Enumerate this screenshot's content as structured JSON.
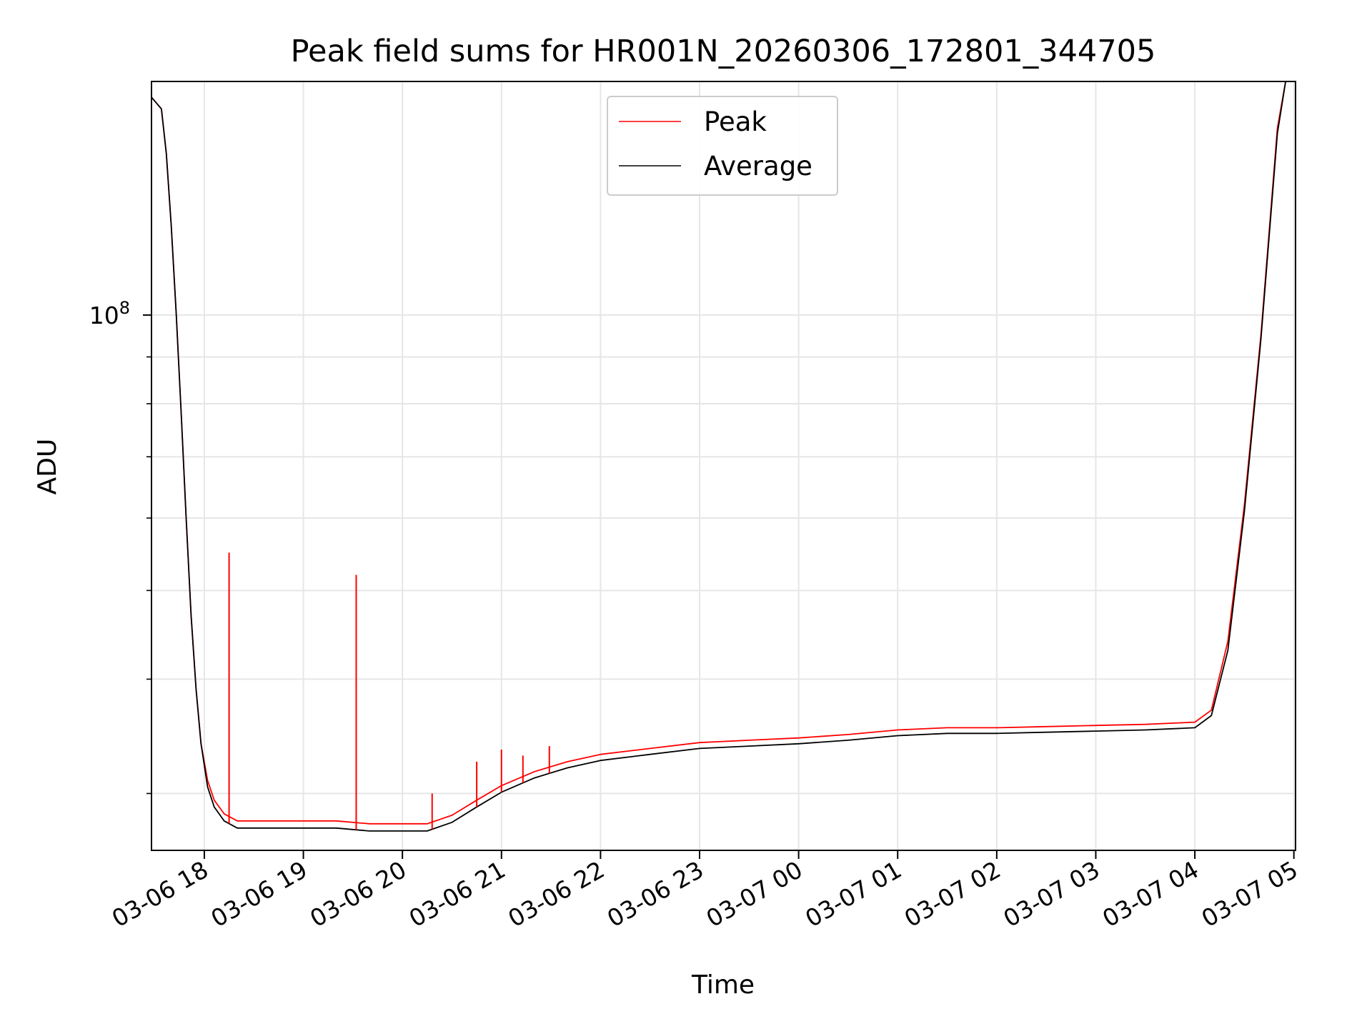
{
  "chart_data": {
    "type": "line",
    "title": "Peak field sums for HR001N_20260306_172801_344705",
    "xlabel": "Time",
    "ylabel": "ADU",
    "y_scale": "log",
    "ylim": [
      26000000,
      180000000
    ],
    "xlim": [
      "2026-03-06 17:28",
      "2026-03-07 05:01"
    ],
    "x_ticks": [
      {
        "t": "2026-03-06 18:00",
        "label": "03-06 18"
      },
      {
        "t": "2026-03-06 19:00",
        "label": "03-06 19"
      },
      {
        "t": "2026-03-06 20:00",
        "label": "03-06 20"
      },
      {
        "t": "2026-03-06 21:00",
        "label": "03-06 21"
      },
      {
        "t": "2026-03-06 22:00",
        "label": "03-06 22"
      },
      {
        "t": "2026-03-06 23:00",
        "label": "03-06 23"
      },
      {
        "t": "2026-03-07 00:00",
        "label": "03-07 00"
      },
      {
        "t": "2026-03-07 01:00",
        "label": "03-07 01"
      },
      {
        "t": "2026-03-07 02:00",
        "label": "03-07 02"
      },
      {
        "t": "2026-03-07 03:00",
        "label": "03-07 03"
      },
      {
        "t": "2026-03-07 04:00",
        "label": "03-07 04"
      },
      {
        "t": "2026-03-07 05:00",
        "label": "03-07 05"
      }
    ],
    "y_major_ticks": [
      {
        "value": 100000000,
        "base": "10",
        "exp": "8"
      }
    ],
    "y_minor_ticks": [
      30000000,
      40000000,
      50000000,
      60000000,
      70000000,
      80000000,
      90000000,
      200000000
    ],
    "grid": true,
    "legend_position": "top-center",
    "series": [
      {
        "name": "Peak",
        "color": "#ff0000",
        "x": [
          "2026-03-06 17:28",
          "2026-03-06 17:34",
          "2026-03-06 17:37",
          "2026-03-06 17:40",
          "2026-03-06 17:43",
          "2026-03-06 17:46",
          "2026-03-06 17:49",
          "2026-03-06 17:52",
          "2026-03-06 17:55",
          "2026-03-06 17:58",
          "2026-03-06 18:02",
          "2026-03-06 18:06",
          "2026-03-06 18:12",
          "2026-03-06 18:20",
          "2026-03-06 18:40",
          "2026-03-06 19:00",
          "2026-03-06 19:20",
          "2026-03-06 19:40",
          "2026-03-06 20:00",
          "2026-03-06 20:15",
          "2026-03-06 20:30",
          "2026-03-06 20:45",
          "2026-03-06 21:00",
          "2026-03-06 21:20",
          "2026-03-06 21:40",
          "2026-03-06 22:00",
          "2026-03-06 22:30",
          "2026-03-06 23:00",
          "2026-03-06 23:30",
          "2026-03-07 00:00",
          "2026-03-07 00:30",
          "2026-03-07 01:00",
          "2026-03-07 01:30",
          "2026-03-07 02:00",
          "2026-03-07 02:30",
          "2026-03-07 03:00",
          "2026-03-07 03:30",
          "2026-03-07 04:00",
          "2026-03-07 04:10",
          "2026-03-07 04:20",
          "2026-03-07 04:30",
          "2026-03-07 04:40",
          "2026-03-07 04:50",
          "2026-03-07 04:55"
        ],
        "y": [
          173000000,
          168000000,
          150000000,
          125000000,
          100000000,
          78000000,
          60000000,
          47000000,
          39000000,
          34000000,
          31000000,
          29500000,
          28500000,
          28000000,
          28000000,
          28000000,
          28000000,
          27800000,
          27800000,
          27800000,
          28400000,
          29500000,
          30600000,
          31700000,
          32500000,
          33100000,
          33600000,
          34100000,
          34300000,
          34500000,
          34800000,
          35200000,
          35400000,
          35400000,
          35500000,
          35600000,
          35700000,
          35900000,
          37000000,
          44000000,
          62000000,
          95000000,
          160000000,
          180000000
        ]
      },
      {
        "name": "Average",
        "color": "#000000",
        "x": [
          "2026-03-06 17:28",
          "2026-03-06 17:34",
          "2026-03-06 17:37",
          "2026-03-06 17:40",
          "2026-03-06 17:43",
          "2026-03-06 17:46",
          "2026-03-06 17:49",
          "2026-03-06 17:52",
          "2026-03-06 17:55",
          "2026-03-06 17:58",
          "2026-03-06 18:02",
          "2026-03-06 18:06",
          "2026-03-06 18:12",
          "2026-03-06 18:20",
          "2026-03-06 18:40",
          "2026-03-06 19:00",
          "2026-03-06 19:20",
          "2026-03-06 19:40",
          "2026-03-06 20:00",
          "2026-03-06 20:15",
          "2026-03-06 20:30",
          "2026-03-06 20:45",
          "2026-03-06 21:00",
          "2026-03-06 21:20",
          "2026-03-06 21:40",
          "2026-03-06 22:00",
          "2026-03-06 22:30",
          "2026-03-06 23:00",
          "2026-03-06 23:30",
          "2026-03-07 00:00",
          "2026-03-07 00:30",
          "2026-03-07 01:00",
          "2026-03-07 01:30",
          "2026-03-07 02:00",
          "2026-03-07 02:30",
          "2026-03-07 03:00",
          "2026-03-07 03:30",
          "2026-03-07 04:00",
          "2026-03-07 04:10",
          "2026-03-07 04:20",
          "2026-03-07 04:30",
          "2026-03-07 04:40",
          "2026-03-07 04:50",
          "2026-03-07 04:55"
        ],
        "y": [
          173000000,
          168000000,
          150000000,
          125000000,
          100000000,
          78000000,
          60000000,
          47000000,
          39000000,
          34000000,
          30500000,
          29000000,
          28000000,
          27500000,
          27500000,
          27500000,
          27500000,
          27300000,
          27300000,
          27300000,
          27900000,
          29000000,
          30100000,
          31200000,
          32000000,
          32600000,
          33100000,
          33600000,
          33800000,
          34000000,
          34300000,
          34700000,
          34900000,
          34900000,
          35000000,
          35100000,
          35200000,
          35400000,
          36500000,
          43000000,
          61000000,
          94000000,
          158000000,
          180000000
        ]
      }
    ],
    "spikes": [
      {
        "t": "2026-03-06 18:15",
        "value": 55000000
      },
      {
        "t": "2026-03-06 19:32",
        "value": 52000000
      },
      {
        "t": "2026-03-06 20:18",
        "value": 30000000
      },
      {
        "t": "2026-03-06 20:45",
        "value": 32500000
      },
      {
        "t": "2026-03-06 21:00",
        "value": 33500000
      },
      {
        "t": "2026-03-06 21:13",
        "value": 33000000
      },
      {
        "t": "2026-03-06 21:29",
        "value": 33800000
      }
    ]
  }
}
